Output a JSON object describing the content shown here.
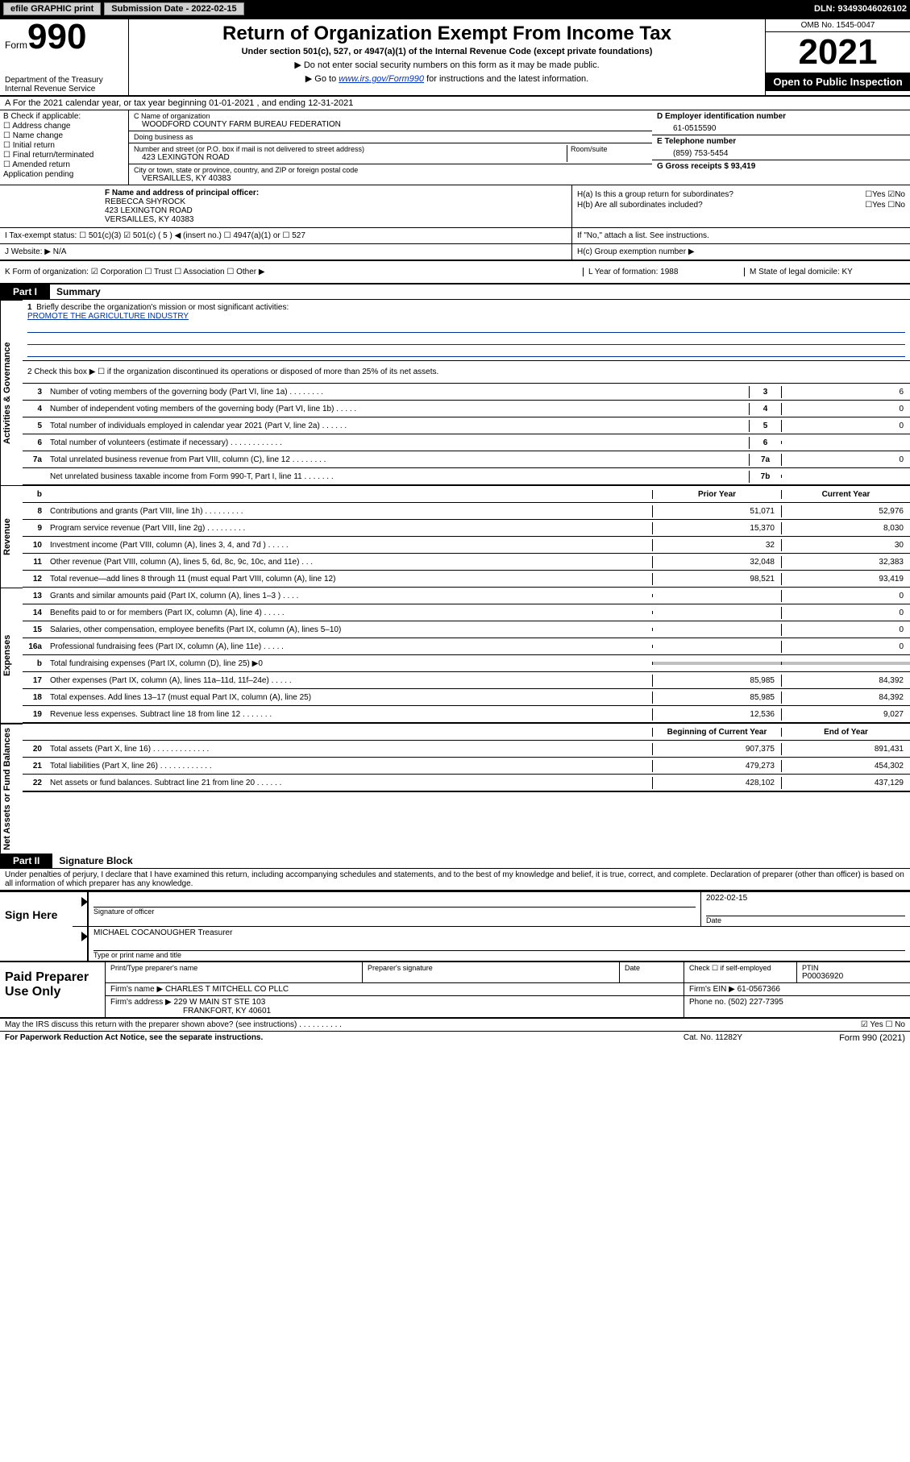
{
  "topbar": {
    "efile": "efile GRAPHIC print",
    "submission_label": "Submission Date - 2022-02-15",
    "dln": "DLN: 93493046026102"
  },
  "header": {
    "form_word": "Form",
    "form_number": "990",
    "dept": "Department of the Treasury",
    "irs": "Internal Revenue Service",
    "title": "Return of Organization Exempt From Income Tax",
    "subtitle": "Under section 501(c), 527, or 4947(a)(1) of the Internal Revenue Code (except private foundations)",
    "instr1": "▶ Do not enter social security numbers on this form as it may be made public.",
    "instr2_pre": "▶ Go to ",
    "instr2_link": "www.irs.gov/Form990",
    "instr2_post": " for instructions and the latest information.",
    "omb": "OMB No. 1545-0047",
    "year": "2021",
    "open": "Open to Public Inspection"
  },
  "rowA": "A For the 2021 calendar year, or tax year beginning 01-01-2021   , and ending 12-31-2021",
  "blockB": {
    "title": "B Check if applicable:",
    "items": [
      "☐ Address change",
      "☐ Name change",
      "☐ Initial return",
      "☐ Final return/terminated",
      "☐ Amended return",
      "   Application pending"
    ]
  },
  "blockC": {
    "name_lbl": "C Name of organization",
    "name_val": "WOODFORD COUNTY FARM BUREAU FEDERATION",
    "dba_lbl": "Doing business as",
    "dba_val": "",
    "addr_lbl": "Number and street (or P.O. box if mail is not delivered to street address)",
    "room_lbl": "Room/suite",
    "addr_val": "423 LEXINGTON ROAD",
    "city_lbl": "City or town, state or province, country, and ZIP or foreign postal code",
    "city_val": "VERSAILLES, KY  40383"
  },
  "blockD": {
    "ein_lbl": "D Employer identification number",
    "ein_val": "61-0515590",
    "tel_lbl": "E Telephone number",
    "tel_val": "(859) 753-5454",
    "gross_lbl": "G Gross receipts $ 93,419"
  },
  "blockF": {
    "lbl": "F Name and address of principal officer:",
    "name": "REBECCA SHYROCK",
    "addr1": "423 LEXINGTON ROAD",
    "addr2": "VERSAILLES, KY  40383"
  },
  "blockH": {
    "ha": "H(a)  Is this a group return for subordinates?",
    "ha_ans": "☐Yes ☑No",
    "hb": "H(b)  Are all subordinates included?",
    "hb_ans": "☐Yes ☐No",
    "hb_note": "If \"No,\" attach a list. See instructions.",
    "hc": "H(c)  Group exemption number ▶"
  },
  "rowI": "I   Tax-exempt status:    ☐ 501(c)(3)   ☑  501(c) ( 5 ) ◀ (insert no.)    ☐ 4947(a)(1) or   ☐ 527",
  "rowJ": "J   Website: ▶  N/A",
  "rowK": {
    "form": "K Form of organization:  ☑ Corporation  ☐ Trust  ☐ Association  ☐ Other ▶",
    "year": "L Year of formation: 1988",
    "state": "M State of legal domicile: KY"
  },
  "part1": {
    "tab": "Part I",
    "title": "Summary"
  },
  "mission": {
    "num": "1",
    "lbl": "Briefly describe the organization's mission or most significant activities:",
    "text": "PROMOTE THE AGRICULTURE INDUSTRY"
  },
  "line2": "2   Check this box ▶ ☐  if the organization discontinued its operations or disposed of more than 25% of its net assets.",
  "gov_sidetab": "Activities & Governance",
  "rev_sidetab": "Revenue",
  "exp_sidetab": "Expenses",
  "net_sidetab": "Net Assets or Fund Balances",
  "gov_rows": [
    {
      "n": "3",
      "d": "Number of voting members of the governing body (Part VI, line 1a)  .    .    .    .    .    .    .    .",
      "b": "3",
      "v": "6"
    },
    {
      "n": "4",
      "d": "Number of independent voting members of the governing body (Part VI, line 1b)  .    .    .    .    .",
      "b": "4",
      "v": "0"
    },
    {
      "n": "5",
      "d": "Total number of individuals employed in calendar year 2021 (Part V, line 2a)  .    .    .    .    .    .",
      "b": "5",
      "v": "0"
    },
    {
      "n": "6",
      "d": "Total number of volunteers (estimate if necessary)  .    .    .    .    .    .    .    .    .    .    .    .",
      "b": "6",
      "v": ""
    },
    {
      "n": "7a",
      "d": "Total unrelated business revenue from Part VIII, column (C), line 12  .    .    .    .    .    .    .    .",
      "b": "7a",
      "v": "0"
    },
    {
      "n": "",
      "d": "Net unrelated business taxable income from Form 990-T, Part I, line 11  .    .    .    .    .    .    .",
      "b": "7b",
      "v": ""
    }
  ],
  "rev_hdr": {
    "prior": "Prior Year",
    "curr": "Current Year"
  },
  "rev_rows": [
    {
      "n": "8",
      "d": "Contributions and grants (Part VIII, line 1h)  .    .    .    .    .    .    .    .    .",
      "p": "51,071",
      "c": "52,976"
    },
    {
      "n": "9",
      "d": "Program service revenue (Part VIII, line 2g)  .    .    .    .    .    .    .    .    .",
      "p": "15,370",
      "c": "8,030"
    },
    {
      "n": "10",
      "d": "Investment income (Part VIII, column (A), lines 3, 4, and 7d )  .    .    .    .    .",
      "p": "32",
      "c": "30"
    },
    {
      "n": "11",
      "d": "Other revenue (Part VIII, column (A), lines 5, 6d, 8c, 9c, 10c, and 11e)  .    .    .",
      "p": "32,048",
      "c": "32,383"
    },
    {
      "n": "12",
      "d": "Total revenue—add lines 8 through 11 (must equal Part VIII, column (A), line 12)",
      "p": "98,521",
      "c": "93,419"
    }
  ],
  "exp_rows": [
    {
      "n": "13",
      "d": "Grants and similar amounts paid (Part IX, column (A), lines 1–3 )  .    .    .    .",
      "p": "",
      "c": "0"
    },
    {
      "n": "14",
      "d": "Benefits paid to or for members (Part IX, column (A), line 4)  .    .    .    .    .",
      "p": "",
      "c": "0"
    },
    {
      "n": "15",
      "d": "Salaries, other compensation, employee benefits (Part IX, column (A), lines 5–10)",
      "p": "",
      "c": "0"
    },
    {
      "n": "16a",
      "d": "Professional fundraising fees (Part IX, column (A), line 11e)  .    .    .    .    .",
      "p": "",
      "c": "0"
    },
    {
      "n": "b",
      "d": "Total fundraising expenses (Part IX, column (D), line 25) ▶0",
      "p": "GREY",
      "c": "GREY"
    },
    {
      "n": "17",
      "d": "Other expenses (Part IX, column (A), lines 11a–11d, 11f–24e)  .    .    .    .    .",
      "p": "85,985",
      "c": "84,392"
    },
    {
      "n": "18",
      "d": "Total expenses. Add lines 13–17 (must equal Part IX, column (A), line 25)",
      "p": "85,985",
      "c": "84,392"
    },
    {
      "n": "19",
      "d": "Revenue less expenses. Subtract line 18 from line 12  .    .    .    .    .    .    .",
      "p": "12,536",
      "c": "9,027"
    }
  ],
  "net_hdr": {
    "beg": "Beginning of Current Year",
    "end": "End of Year"
  },
  "net_rows": [
    {
      "n": "20",
      "d": "Total assets (Part X, line 16)  .    .    .    .    .    .    .    .    .    .    .    .    .",
      "p": "907,375",
      "c": "891,431"
    },
    {
      "n": "21",
      "d": "Total liabilities (Part X, line 26)  .    .    .    .    .    .    .    .    .    .    .    .",
      "p": "479,273",
      "c": "454,302"
    },
    {
      "n": "22",
      "d": "Net assets or fund balances. Subtract line 21 from line 20  .    .    .    .    .    .",
      "p": "428,102",
      "c": "437,129"
    }
  ],
  "part2": {
    "tab": "Part II",
    "title": "Signature Block"
  },
  "declaration": "Under penalties of perjury, I declare that I have examined this return, including accompanying schedules and statements, and to the best of my knowledge and belief, it is true, correct, and complete. Declaration of preparer (other than officer) is based on all information of which preparer has any knowledge.",
  "sign": {
    "here": "Sign Here",
    "sig_lbl": "Signature of officer",
    "date_val": "2022-02-15",
    "date_lbl": "Date",
    "name": "MICHAEL COCANOUGHER Treasurer",
    "name_lbl": "Type or print name and title"
  },
  "prep": {
    "title": "Paid Preparer Use Only",
    "r1": {
      "c1": "Print/Type preparer's name",
      "c2": "Preparer's signature",
      "c3": "Date",
      "c4_lbl": "Check ☐ if self-employed",
      "c5_lbl": "PTIN",
      "c5_val": "P00036920"
    },
    "r2": {
      "lbl": "Firm's name    ▶",
      "val": "CHARLES T MITCHELL CO PLLC",
      "ein_lbl": "Firm's EIN ▶",
      "ein_val": "61-0567366"
    },
    "r3": {
      "lbl": "Firm's address ▶",
      "val1": "229 W MAIN ST STE 103",
      "val2": "FRANKFORT, KY  40601",
      "ph_lbl": "Phone no.",
      "ph_val": "(502) 227-7395"
    }
  },
  "footer": {
    "may": "May the IRS discuss this return with the preparer shown above? (see instructions)  .    .    .    .    .    .    .    .    .    .",
    "yesno": "☑ Yes  ☐ No",
    "pra": "For Paperwork Reduction Act Notice, see the separate instructions.",
    "cat": "Cat. No. 11282Y",
    "form": "Form 990 (2021)"
  }
}
